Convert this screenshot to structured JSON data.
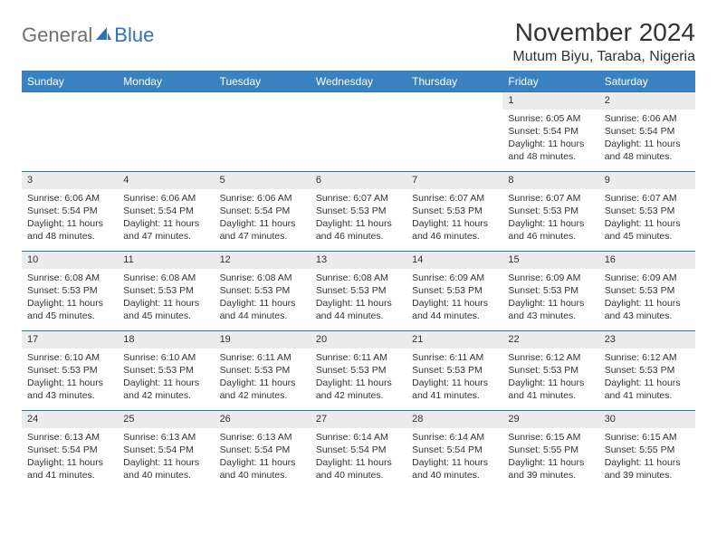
{
  "logo": {
    "general": "General",
    "blue": "Blue"
  },
  "title": "November 2024",
  "location": "Mutum Biyu, Taraba, Nigeria",
  "colors": {
    "header_bg": "#3a81c1",
    "header_border": "#2e74b5",
    "daynum_bg": "#ececec",
    "text": "#333333"
  },
  "weekdays": [
    "Sunday",
    "Monday",
    "Tuesday",
    "Wednesday",
    "Thursday",
    "Friday",
    "Saturday"
  ],
  "weeks": [
    [
      {
        "n": "",
        "sr": "",
        "ss": "",
        "dl": ""
      },
      {
        "n": "",
        "sr": "",
        "ss": "",
        "dl": ""
      },
      {
        "n": "",
        "sr": "",
        "ss": "",
        "dl": ""
      },
      {
        "n": "",
        "sr": "",
        "ss": "",
        "dl": ""
      },
      {
        "n": "",
        "sr": "",
        "ss": "",
        "dl": ""
      },
      {
        "n": "1",
        "sr": "Sunrise: 6:05 AM",
        "ss": "Sunset: 5:54 PM",
        "dl": "Daylight: 11 hours and 48 minutes."
      },
      {
        "n": "2",
        "sr": "Sunrise: 6:06 AM",
        "ss": "Sunset: 5:54 PM",
        "dl": "Daylight: 11 hours and 48 minutes."
      }
    ],
    [
      {
        "n": "3",
        "sr": "Sunrise: 6:06 AM",
        "ss": "Sunset: 5:54 PM",
        "dl": "Daylight: 11 hours and 48 minutes."
      },
      {
        "n": "4",
        "sr": "Sunrise: 6:06 AM",
        "ss": "Sunset: 5:54 PM",
        "dl": "Daylight: 11 hours and 47 minutes."
      },
      {
        "n": "5",
        "sr": "Sunrise: 6:06 AM",
        "ss": "Sunset: 5:54 PM",
        "dl": "Daylight: 11 hours and 47 minutes."
      },
      {
        "n": "6",
        "sr": "Sunrise: 6:07 AM",
        "ss": "Sunset: 5:53 PM",
        "dl": "Daylight: 11 hours and 46 minutes."
      },
      {
        "n": "7",
        "sr": "Sunrise: 6:07 AM",
        "ss": "Sunset: 5:53 PM",
        "dl": "Daylight: 11 hours and 46 minutes."
      },
      {
        "n": "8",
        "sr": "Sunrise: 6:07 AM",
        "ss": "Sunset: 5:53 PM",
        "dl": "Daylight: 11 hours and 46 minutes."
      },
      {
        "n": "9",
        "sr": "Sunrise: 6:07 AM",
        "ss": "Sunset: 5:53 PM",
        "dl": "Daylight: 11 hours and 45 minutes."
      }
    ],
    [
      {
        "n": "10",
        "sr": "Sunrise: 6:08 AM",
        "ss": "Sunset: 5:53 PM",
        "dl": "Daylight: 11 hours and 45 minutes."
      },
      {
        "n": "11",
        "sr": "Sunrise: 6:08 AM",
        "ss": "Sunset: 5:53 PM",
        "dl": "Daylight: 11 hours and 45 minutes."
      },
      {
        "n": "12",
        "sr": "Sunrise: 6:08 AM",
        "ss": "Sunset: 5:53 PM",
        "dl": "Daylight: 11 hours and 44 minutes."
      },
      {
        "n": "13",
        "sr": "Sunrise: 6:08 AM",
        "ss": "Sunset: 5:53 PM",
        "dl": "Daylight: 11 hours and 44 minutes."
      },
      {
        "n": "14",
        "sr": "Sunrise: 6:09 AM",
        "ss": "Sunset: 5:53 PM",
        "dl": "Daylight: 11 hours and 44 minutes."
      },
      {
        "n": "15",
        "sr": "Sunrise: 6:09 AM",
        "ss": "Sunset: 5:53 PM",
        "dl": "Daylight: 11 hours and 43 minutes."
      },
      {
        "n": "16",
        "sr": "Sunrise: 6:09 AM",
        "ss": "Sunset: 5:53 PM",
        "dl": "Daylight: 11 hours and 43 minutes."
      }
    ],
    [
      {
        "n": "17",
        "sr": "Sunrise: 6:10 AM",
        "ss": "Sunset: 5:53 PM",
        "dl": "Daylight: 11 hours and 43 minutes."
      },
      {
        "n": "18",
        "sr": "Sunrise: 6:10 AM",
        "ss": "Sunset: 5:53 PM",
        "dl": "Daylight: 11 hours and 42 minutes."
      },
      {
        "n": "19",
        "sr": "Sunrise: 6:11 AM",
        "ss": "Sunset: 5:53 PM",
        "dl": "Daylight: 11 hours and 42 minutes."
      },
      {
        "n": "20",
        "sr": "Sunrise: 6:11 AM",
        "ss": "Sunset: 5:53 PM",
        "dl": "Daylight: 11 hours and 42 minutes."
      },
      {
        "n": "21",
        "sr": "Sunrise: 6:11 AM",
        "ss": "Sunset: 5:53 PM",
        "dl": "Daylight: 11 hours and 41 minutes."
      },
      {
        "n": "22",
        "sr": "Sunrise: 6:12 AM",
        "ss": "Sunset: 5:53 PM",
        "dl": "Daylight: 11 hours and 41 minutes."
      },
      {
        "n": "23",
        "sr": "Sunrise: 6:12 AM",
        "ss": "Sunset: 5:53 PM",
        "dl": "Daylight: 11 hours and 41 minutes."
      }
    ],
    [
      {
        "n": "24",
        "sr": "Sunrise: 6:13 AM",
        "ss": "Sunset: 5:54 PM",
        "dl": "Daylight: 11 hours and 41 minutes."
      },
      {
        "n": "25",
        "sr": "Sunrise: 6:13 AM",
        "ss": "Sunset: 5:54 PM",
        "dl": "Daylight: 11 hours and 40 minutes."
      },
      {
        "n": "26",
        "sr": "Sunrise: 6:13 AM",
        "ss": "Sunset: 5:54 PM",
        "dl": "Daylight: 11 hours and 40 minutes."
      },
      {
        "n": "27",
        "sr": "Sunrise: 6:14 AM",
        "ss": "Sunset: 5:54 PM",
        "dl": "Daylight: 11 hours and 40 minutes."
      },
      {
        "n": "28",
        "sr": "Sunrise: 6:14 AM",
        "ss": "Sunset: 5:54 PM",
        "dl": "Daylight: 11 hours and 40 minutes."
      },
      {
        "n": "29",
        "sr": "Sunrise: 6:15 AM",
        "ss": "Sunset: 5:55 PM",
        "dl": "Daylight: 11 hours and 39 minutes."
      },
      {
        "n": "30",
        "sr": "Sunrise: 6:15 AM",
        "ss": "Sunset: 5:55 PM",
        "dl": "Daylight: 11 hours and 39 minutes."
      }
    ]
  ]
}
